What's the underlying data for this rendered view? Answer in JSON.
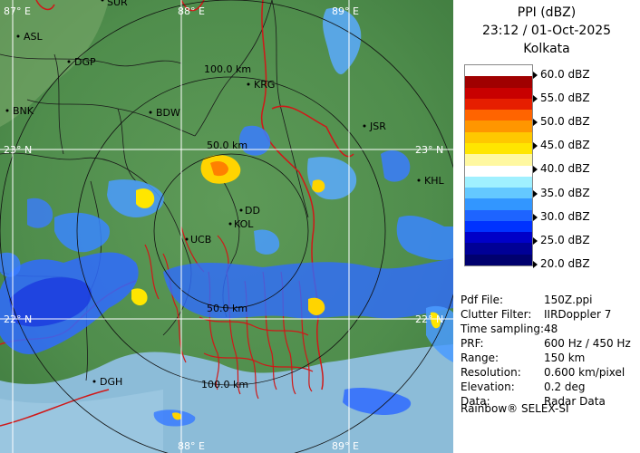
{
  "panel": {
    "product": "PPI (dBZ)",
    "datetime": "23:12 / 01-Oct-2025",
    "station": "Kolkata"
  },
  "legend": {
    "labels": [
      "60.0 dBZ",
      "55.0 dBZ",
      "50.0 dBZ",
      "45.0 dBZ",
      "40.0 dBZ",
      "35.0 dBZ",
      "30.0 dBZ",
      "25.0 dBZ",
      "20.0 dBZ"
    ],
    "colors": [
      "#ffffff",
      "#a00000",
      "#c80000",
      "#e61e00",
      "#ff6400",
      "#ff9600",
      "#ffc800",
      "#ffe600",
      "#fff8a0",
      "#ffffff",
      "#a0f0ff",
      "#64c8ff",
      "#3296ff",
      "#1e64ff",
      "#0032ff",
      "#0000c8",
      "#000096",
      "#00006e"
    ]
  },
  "info": [
    {
      "key": "Pdf File:",
      "value": "150Z.ppi"
    },
    {
      "key": "Clutter Filter:",
      "value": "IIRDoppler 7"
    },
    {
      "key": "Time sampling:",
      "value": "48"
    },
    {
      "key": "PRF:",
      "value": "600 Hz / 450 Hz"
    },
    {
      "key": "Range:",
      "value": "150 km"
    },
    {
      "key": "Resolution:",
      "value": "0.600 km/pixel"
    },
    {
      "key": "Elevation:",
      "value": "0.2 deg"
    },
    {
      "key": "Data:",
      "value": "Radar Data"
    }
  ],
  "credit": "Rainbow® SELEX-SI",
  "map": {
    "grid_labels": {
      "lon_88": "88° E",
      "lon_89": "89° E",
      "lon_87": "87° E",
      "lat_23": "23° N",
      "lat_22": "22° N",
      "lat_23_right": "23° N",
      "lat_22_right": "22° N",
      "lon_88_bottom": "88° E",
      "lon_89_bottom": "89° E"
    },
    "ring_labels": {
      "r100": "100.0 km",
      "r50": "50.0 km",
      "r50s": "50.0 km",
      "r100s": "100.0 km"
    },
    "places": [
      "ASL",
      "DGP",
      "BNK",
      "BDW",
      "KRG",
      "JSR",
      "KHL",
      "DD",
      "KOL",
      "UCB",
      "DGH",
      "SUR"
    ]
  },
  "colors": {
    "land": "#4e8a4e",
    "land_light": "#6aa06a",
    "sea": "#8ab8d8",
    "border": "#d01818"
  }
}
